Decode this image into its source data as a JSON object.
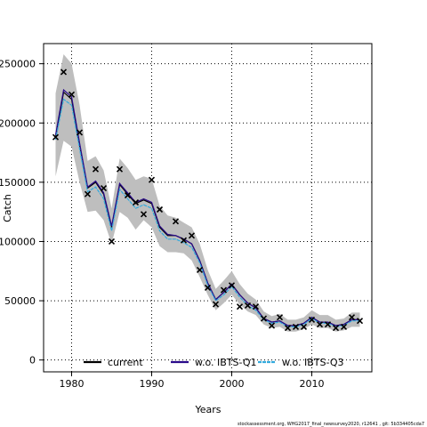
{
  "chart_data": {
    "type": "line",
    "xlabel": "Years",
    "ylabel": "Catch",
    "xlim": [
      1976.5,
      2017.5
    ],
    "ylim": [
      -10000,
      267000
    ],
    "x_ticks": [
      1980,
      1990,
      2000,
      2010
    ],
    "y_ticks": [
      0,
      50000,
      100000,
      150000,
      200000,
      250000
    ],
    "y_tick_labels": [
      "0",
      "50000",
      "100000",
      "150000",
      "200000",
      "250000"
    ],
    "grid": true,
    "legend_position": "bottom",
    "x": [
      1978,
      1979,
      1980,
      1981,
      1982,
      1983,
      1984,
      1985,
      1986,
      1987,
      1988,
      1989,
      1990,
      1991,
      1992,
      1993,
      1994,
      1995,
      1996,
      1997,
      1998,
      1999,
      2000,
      2001,
      2002,
      2003,
      2004,
      2005,
      2006,
      2007,
      2008,
      2009,
      2010,
      2011,
      2012,
      2013,
      2014,
      2015,
      2016
    ],
    "series": [
      {
        "name": "current",
        "color": "#000000",
        "values": [
          188000,
          226000,
          220000,
          181000,
          145000,
          150000,
          140000,
          112000,
          148000,
          140000,
          132000,
          135000,
          132000,
          112000,
          105000,
          105000,
          102000,
          98000,
          84000,
          65000,
          51000,
          57000,
          64000,
          55000,
          48000,
          44000,
          35000,
          32000,
          33000,
          29000,
          29000,
          31000,
          36000,
          32000,
          32000,
          29000,
          30000,
          34000,
          34000
        ]
      },
      {
        "name": "w.o. IBTS-Q1",
        "color": "#2a0a8a",
        "values": [
          190000,
          228000,
          222000,
          183000,
          146000,
          151000,
          141000,
          113000,
          149000,
          141000,
          133000,
          136000,
          133000,
          113000,
          106000,
          105000,
          102000,
          98000,
          84000,
          65000,
          51000,
          57000,
          64000,
          55000,
          48000,
          44000,
          35000,
          32000,
          33000,
          29000,
          29000,
          31000,
          36000,
          32000,
          32000,
          29000,
          30000,
          34000,
          34000
        ]
      },
      {
        "name": "w.o. IBTS-Q3",
        "color": "#33aadd",
        "values": [
          186000,
          220000,
          215000,
          178000,
          142000,
          146000,
          136000,
          109000,
          144000,
          136000,
          128000,
          131000,
          128000,
          109000,
          102000,
          102000,
          99000,
          95000,
          82000,
          63000,
          50000,
          55000,
          62000,
          53000,
          46000,
          42000,
          34000,
          31000,
          32000,
          28000,
          28000,
          30000,
          35000,
          31000,
          31000,
          28000,
          29000,
          33000,
          33000
        ]
      }
    ],
    "band": {
      "color": "#bebebe",
      "lower": [
        155000,
        185000,
        180000,
        150000,
        125000,
        126000,
        118000,
        98000,
        125000,
        120000,
        110000,
        118000,
        112000,
        96000,
        91000,
        91000,
        90000,
        84000,
        70000,
        55000,
        42000,
        48000,
        55000,
        47000,
        41000,
        38000,
        30000,
        27000,
        28000,
        24000,
        24000,
        26000,
        30000,
        27000,
        27000,
        24000,
        25000,
        28000,
        28000
      ],
      "upper": [
        225000,
        258000,
        250000,
        215000,
        168000,
        172000,
        160000,
        128000,
        170000,
        162000,
        152000,
        155000,
        153000,
        130000,
        122000,
        120000,
        116000,
        112000,
        98000,
        76000,
        60000,
        67000,
        75000,
        64000,
        56000,
        51000,
        41000,
        37000,
        39000,
        34000,
        34000,
        36000,
        42000,
        38000,
        38000,
        34000,
        35000,
        40000,
        40000
      ]
    },
    "observed": {
      "marker": "x",
      "x": [
        1978,
        1979,
        1980,
        1981,
        1982,
        1983,
        1984,
        1985,
        1986,
        1987,
        1988,
        1989,
        1990,
        1991,
        1993,
        1994,
        1995,
        1996,
        1997,
        1998,
        1999,
        2000,
        2001,
        2002,
        2003,
        2004,
        2005,
        2006,
        2007,
        2008,
        2009,
        2010,
        2011,
        2012,
        2013,
        2014,
        2015,
        2016
      ],
      "y": [
        188000,
        243000,
        224000,
        192000,
        140000,
        161000,
        145000,
        100000,
        161000,
        139000,
        133000,
        123000,
        152000,
        127000,
        117000,
        101000,
        105000,
        76000,
        61000,
        47000,
        59000,
        63000,
        45000,
        46000,
        45000,
        35000,
        29000,
        36000,
        27000,
        28000,
        28000,
        34000,
        30000,
        30000,
        27000,
        28000,
        36000,
        33000
      ]
    }
  },
  "footer_text": "stockassessment.org, WHG2017_final_newsurvey2020, r12641 , git: 5b334405cda7"
}
